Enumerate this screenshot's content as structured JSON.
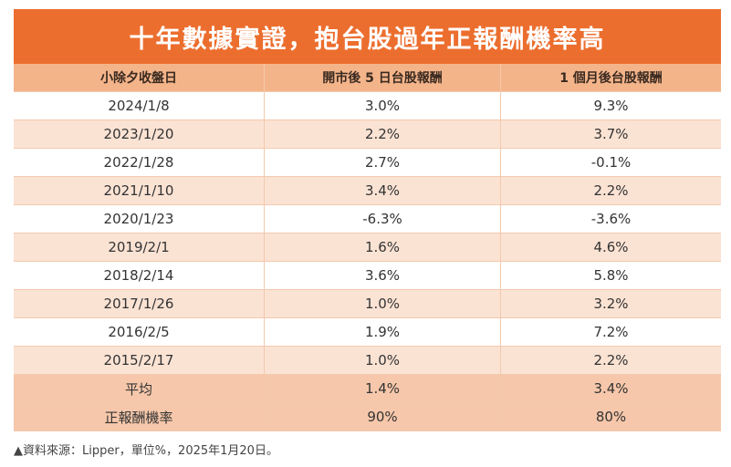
{
  "title": "十年數據實證，抱台股過年正報酬機率高",
  "headers": [
    "小除夕收盤日",
    "開市後 5 日台股報酬",
    "1 個月後台股報酬"
  ],
  "rows": [
    [
      "2024/1/8",
      "3.0%",
      "9.3%"
    ],
    [
      "2023/1/20",
      "2.2%",
      "3.7%"
    ],
    [
      "2022/1/28",
      "2.7%",
      "-0.1%"
    ],
    [
      "2021/1/10",
      "3.4%",
      "2.2%"
    ],
    [
      "2020/1/23",
      "-6.3%",
      "-3.6%"
    ],
    [
      "2019/2/1",
      "1.6%",
      "4.6%"
    ],
    [
      "2018/2/14",
      "3.6%",
      "5.8%"
    ],
    [
      "2017/1/26",
      "1.0%",
      "3.2%"
    ],
    [
      "2016/2/5",
      "1.9%",
      "7.2%"
    ],
    [
      "2015/2/17",
      "1.0%",
      "2.2%"
    ]
  ],
  "summary": [
    [
      "平均",
      "1.4%",
      "3.4%"
    ],
    [
      "正報酬機率",
      "90%",
      "80%"
    ]
  ],
  "note": "▲資料來源：Lipper，單位%，2025年1月20日。",
  "colors": {
    "title_bg": "#ec6e2e",
    "header_bg": "#f4b48a",
    "row_light": "#fbe3d4",
    "summary_bg": "#f6c7aa"
  }
}
